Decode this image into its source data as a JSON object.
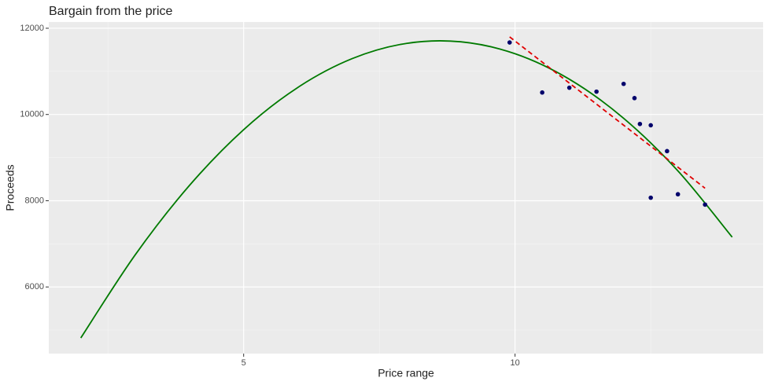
{
  "chart_data": {
    "type": "scatter",
    "title": "Bargain from the price",
    "x_label": "Price range",
    "y_label": "Proceeds",
    "xlim": [
      1.41,
      14.57
    ],
    "ylim": [
      4455,
      12145
    ],
    "xticks": [
      5,
      10
    ],
    "yticks": [
      6000,
      8000,
      10000,
      12000
    ],
    "x_minor_ticks": [
      2.5,
      7.5,
      12.5
    ],
    "y_minor_ticks": [
      5000,
      7000,
      9000,
      11000,
      12000
    ],
    "grid": true,
    "points": {
      "color": "#00006b",
      "x": [
        9.9,
        10.5,
        11.0,
        11.5,
        12.0,
        12.2,
        12.3,
        12.5,
        12.8,
        12.5,
        13.0,
        13.5
      ],
      "y": [
        11670,
        10510,
        10620,
        10530,
        10710,
        10380,
        9780,
        9750,
        9150,
        8070,
        8150,
        7910
      ]
    },
    "curve": {
      "color": "#007a00",
      "x": [
        2,
        3,
        4,
        5,
        6,
        7,
        8,
        9,
        10,
        11,
        12,
        13,
        14
      ],
      "y": [
        4818,
        6741,
        8352,
        9648,
        10629,
        11296,
        11649,
        11686,
        11409,
        10818,
        9912,
        8691,
        7156
      ]
    },
    "line": {
      "color": "#e00000",
      "dashed": true,
      "x": [
        9.9,
        13.5
      ],
      "y": [
        11800,
        8290
      ]
    }
  }
}
